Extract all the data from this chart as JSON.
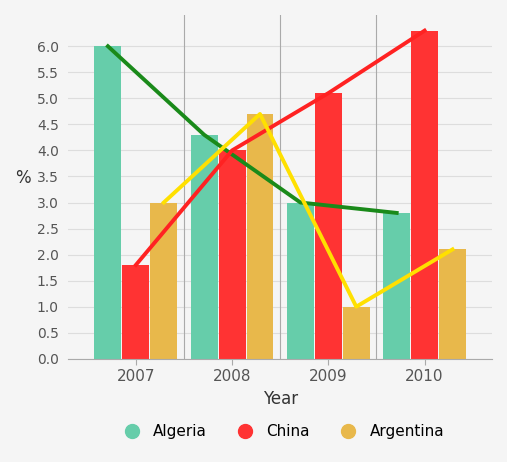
{
  "years": [
    2007,
    2008,
    2009,
    2010
  ],
  "algeria": [
    6.0,
    4.3,
    3.0,
    2.8
  ],
  "china": [
    1.8,
    4.0,
    5.1,
    6.3
  ],
  "argentina": [
    3.0,
    4.7,
    1.0,
    2.1
  ],
  "algeria_color": "#66CDAA",
  "china_color": "#FF3333",
  "argentina_color": "#E8B84B",
  "algeria_line_color": "#1a8a1a",
  "china_line_color": "#FF2222",
  "argentina_line_color": "#FFE000",
  "xlabel": "Year",
  "ylabel": "%",
  "ylim": [
    0.0,
    6.6
  ],
  "yticks": [
    0.0,
    0.5,
    1.0,
    1.5,
    2.0,
    2.5,
    3.0,
    3.5,
    4.0,
    4.5,
    5.0,
    5.5,
    6.0
  ],
  "background_color": "#f5f5f5",
  "plot_bg_color": "#f5f5f5",
  "grid_color": "#dddddd"
}
